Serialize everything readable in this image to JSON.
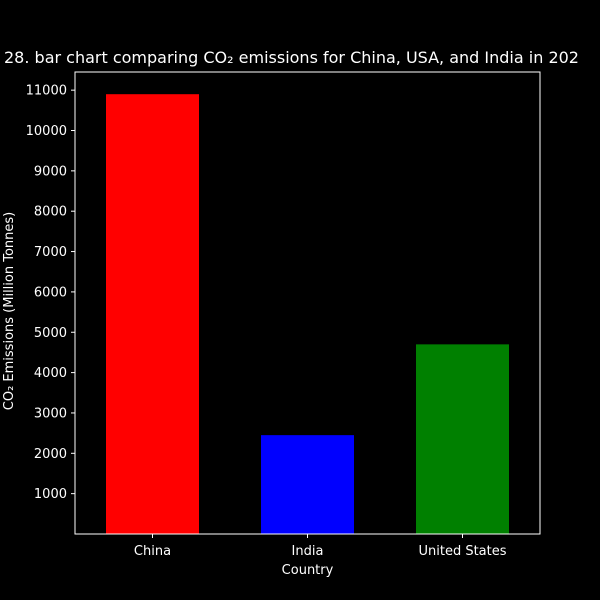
{
  "chart_data": {
    "type": "bar",
    "title": "28. bar chart comparing CO₂ emissions for China, USA, and India in 202",
    "xlabel": "Country",
    "ylabel": "CO₂ Emissions (Million Tonnes)",
    "categories": [
      "China",
      "India",
      "United States"
    ],
    "values": [
      10900,
      2450,
      4700
    ],
    "colors": [
      "#ff0000",
      "#0000ff",
      "#008000"
    ],
    "ylim": [
      0,
      11450
    ],
    "yticks": [
      1000,
      2000,
      3000,
      4000,
      5000,
      6000,
      7000,
      8000,
      9000,
      10000,
      11000
    ],
    "grid": false,
    "legend": "none",
    "background": "#000000",
    "foreground": "#ffffff"
  }
}
